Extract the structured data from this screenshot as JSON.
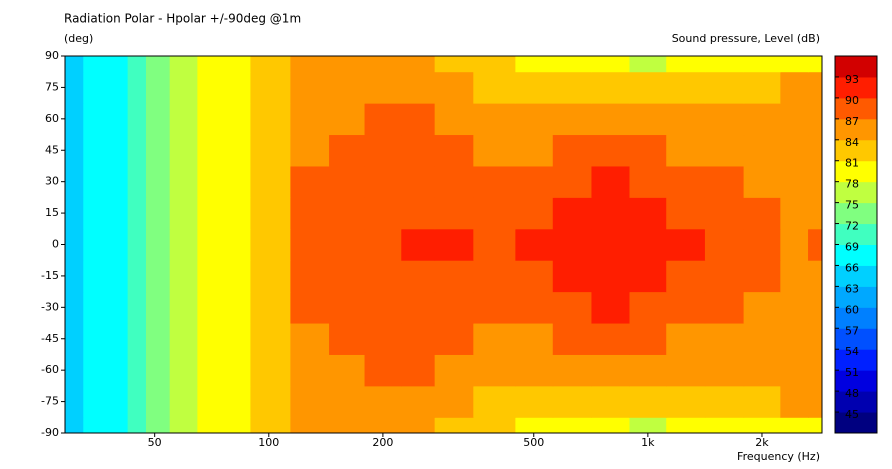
{
  "chart_data": {
    "type": "contour",
    "title": "Radiation Polar - Hpolar +/-90deg @1m",
    "y_label": "(deg)",
    "colorbar_label": "Sound pressure, Level  (dB)",
    "x_label": "Frequency  (Hz)",
    "x_log": true,
    "x": [
      30,
      35,
      40,
      45,
      50,
      60,
      70,
      80,
      100,
      130,
      160,
      200,
      250,
      300,
      400,
      500,
      630,
      800,
      1000,
      1250,
      1600,
      2000,
      2500,
      2800
    ],
    "y": [
      -90,
      -75,
      -60,
      -45,
      -30,
      -15,
      0,
      15,
      30,
      45,
      60,
      75,
      90
    ],
    "z": [
      [
        64.5,
        67.5,
        67.5,
        70.5,
        73.5,
        76.5,
        79.5,
        79.5,
        82.5,
        85.5,
        85.5,
        85.5,
        85.5,
        82.5,
        82.5,
        79.5,
        79.5,
        79.5,
        76.5,
        79.5,
        79.5,
        79.5,
        79.5,
        79.5
      ],
      [
        64.5,
        67.5,
        67.5,
        70.5,
        73.5,
        76.5,
        79.5,
        79.5,
        82.5,
        85.5,
        85.5,
        85.5,
        85.5,
        85.5,
        82.5,
        82.5,
        82.5,
        82.5,
        82.5,
        82.5,
        82.5,
        82.5,
        85.5,
        85.5
      ],
      [
        64.5,
        67.5,
        67.5,
        70.5,
        73.5,
        76.5,
        79.5,
        79.5,
        82.5,
        85.5,
        85.5,
        88.5,
        88.5,
        85.5,
        85.5,
        85.5,
        85.5,
        85.5,
        85.5,
        85.5,
        85.5,
        85.5,
        85.5,
        85.5
      ],
      [
        64.5,
        67.5,
        67.5,
        70.5,
        73.5,
        76.5,
        79.5,
        79.5,
        82.5,
        85.5,
        88.5,
        88.5,
        88.5,
        88.5,
        85.5,
        85.5,
        88.5,
        88.5,
        88.5,
        85.5,
        85.5,
        85.5,
        85.5,
        85.5
      ],
      [
        64.5,
        67.5,
        67.5,
        70.5,
        73.5,
        76.5,
        79.5,
        79.5,
        82.5,
        88.5,
        88.5,
        88.5,
        88.5,
        88.5,
        88.5,
        88.5,
        88.5,
        91.5,
        88.5,
        88.5,
        88.5,
        85.5,
        85.5,
        85.5
      ],
      [
        64.5,
        67.5,
        67.5,
        70.5,
        73.5,
        76.5,
        79.5,
        79.5,
        82.5,
        88.5,
        88.5,
        88.5,
        88.5,
        88.5,
        88.5,
        88.5,
        91.5,
        91.5,
        91.5,
        88.5,
        88.5,
        88.5,
        85.5,
        85.5
      ],
      [
        64.5,
        67.5,
        67.5,
        70.5,
        73.5,
        76.5,
        79.5,
        79.5,
        82.5,
        88.5,
        88.5,
        88.5,
        91.5,
        91.5,
        88.5,
        91.5,
        91.5,
        91.5,
        91.5,
        91.5,
        88.5,
        88.5,
        85.5,
        88.5
      ],
      [
        64.5,
        67.5,
        67.5,
        70.5,
        73.5,
        76.5,
        79.5,
        79.5,
        82.5,
        88.5,
        88.5,
        88.5,
        88.5,
        88.5,
        88.5,
        88.5,
        91.5,
        91.5,
        91.5,
        88.5,
        88.5,
        88.5,
        85.5,
        85.5
      ],
      [
        64.5,
        67.5,
        67.5,
        70.5,
        73.5,
        76.5,
        79.5,
        79.5,
        82.5,
        88.5,
        88.5,
        88.5,
        88.5,
        88.5,
        88.5,
        88.5,
        88.5,
        91.5,
        88.5,
        88.5,
        88.5,
        85.5,
        85.5,
        85.5
      ],
      [
        64.5,
        67.5,
        67.5,
        70.5,
        73.5,
        76.5,
        79.5,
        79.5,
        82.5,
        85.5,
        88.5,
        88.5,
        88.5,
        88.5,
        85.5,
        85.5,
        88.5,
        88.5,
        88.5,
        85.5,
        85.5,
        85.5,
        85.5,
        85.5
      ],
      [
        64.5,
        67.5,
        67.5,
        70.5,
        73.5,
        76.5,
        79.5,
        79.5,
        82.5,
        85.5,
        85.5,
        88.5,
        88.5,
        85.5,
        85.5,
        85.5,
        85.5,
        85.5,
        85.5,
        85.5,
        85.5,
        85.5,
        85.5,
        85.5
      ],
      [
        64.5,
        67.5,
        67.5,
        70.5,
        73.5,
        76.5,
        79.5,
        79.5,
        82.5,
        85.5,
        85.5,
        85.5,
        85.5,
        85.5,
        82.5,
        82.5,
        82.5,
        82.5,
        82.5,
        82.5,
        82.5,
        82.5,
        85.5,
        85.5
      ],
      [
        64.5,
        67.5,
        67.5,
        70.5,
        73.5,
        76.5,
        79.5,
        79.5,
        82.5,
        85.5,
        85.5,
        85.5,
        85.5,
        82.5,
        82.5,
        79.5,
        79.5,
        79.5,
        76.5,
        79.5,
        79.5,
        79.5,
        79.5,
        79.5
      ]
    ],
    "xlim": [
      29,
      2880
    ],
    "ylim": [
      -90,
      90
    ],
    "xticks": [
      50,
      100,
      200,
      500,
      {
        "value": 1000,
        "label": "1k"
      },
      {
        "value": 2000,
        "label": "2k"
      }
    ],
    "yticks": [
      -90,
      -75,
      -60,
      -45,
      -30,
      -15,
      0,
      15,
      30,
      45,
      60,
      75,
      90
    ],
    "levels": [
      42,
      45,
      48,
      51,
      54,
      57,
      60,
      63,
      66,
      69,
      72,
      75,
      78,
      81,
      84,
      87,
      90,
      93,
      96
    ],
    "colors": [
      "#000080",
      "#0000b0",
      "#0000e0",
      "#0020ff",
      "#0050ff",
      "#0080ff",
      "#00a8ff",
      "#00d0ff",
      "#00ffff",
      "#40ffc0",
      "#80ff80",
      "#c0ff40",
      "#ffff00",
      "#ffc800",
      "#ff9600",
      "#ff5a00",
      "#ff1e00",
      "#d20000",
      "#a00000"
    ],
    "colorbar_ticks": [
      45,
      48,
      51,
      54,
      57,
      60,
      63,
      66,
      69,
      72,
      75,
      78,
      81,
      84,
      87,
      90,
      93
    ]
  }
}
